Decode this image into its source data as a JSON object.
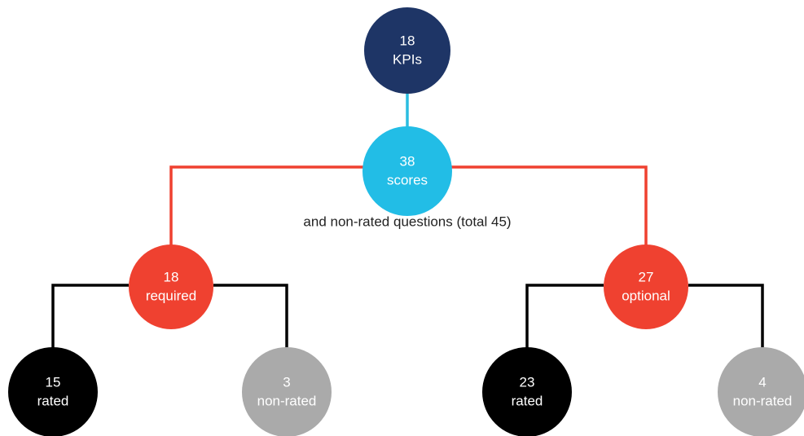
{
  "nodes": [
    {
      "value": 18,
      "label": "KPIs"
    },
    {
      "value": 38,
      "label": "scores"
    },
    {
      "value": 18,
      "label": "required"
    },
    {
      "value": 27,
      "label": "optional"
    },
    {
      "value": 15,
      "label": "rated"
    },
    {
      "value": 3,
      "label": "non-rated"
    },
    {
      "value": 23,
      "label": "rated"
    },
    {
      "value": 4,
      "label": "non-rated"
    }
  ],
  "note": "and non-rated questions (total 45)"
}
